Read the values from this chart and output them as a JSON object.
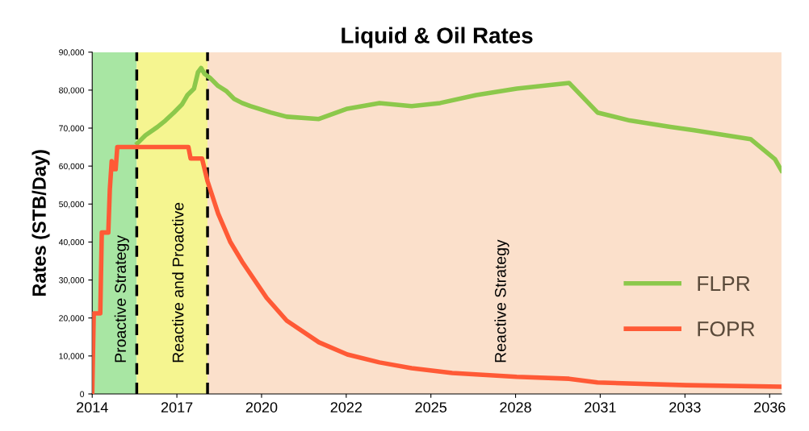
{
  "chart_data": {
    "type": "line",
    "title": "Liquid & Oil Rates",
    "ylabel": "Rates (STB/Day)",
    "xlim": [
      "2014-08-08",
      "2036-11-21"
    ],
    "ylim": [
      0,
      90000
    ],
    "xticks": [
      {
        "value": "2014-08-08",
        "label": "2014"
      },
      {
        "value": "2017-05-04",
        "label": "2017"
      },
      {
        "value": "2020-01-29",
        "label": "2020"
      },
      {
        "value": "2022-10-25",
        "label": "2022"
      },
      {
        "value": "2025-07-21",
        "label": "2025"
      },
      {
        "value": "2028-04-16",
        "label": "2028"
      },
      {
        "value": "2031-01-11",
        "label": "2031"
      },
      {
        "value": "2033-10-08",
        "label": "2033"
      },
      {
        "value": "2036-07-04",
        "label": "2036"
      }
    ],
    "yticks": [
      {
        "value": 0,
        "label": "0"
      },
      {
        "value": 10000,
        "label": "10,000"
      },
      {
        "value": 20000,
        "label": "20,000"
      },
      {
        "value": 30000,
        "label": "30,000"
      },
      {
        "value": 40000,
        "label": "40,000"
      },
      {
        "value": 50000,
        "label": "50,000"
      },
      {
        "value": 60000,
        "label": "60,000"
      },
      {
        "value": 70000,
        "label": "70,000"
      },
      {
        "value": 80000,
        "label": "80,000"
      },
      {
        "value": 90000,
        "label": "90,000"
      }
    ],
    "grid": false,
    "legend": "bottom right",
    "marker": "none",
    "line_style": "solid",
    "bands": [
      {
        "axis": "x",
        "from": "2014-08-08",
        "to": "2016-01-16",
        "label": "Proactive Strategy",
        "color": "#a8e6a3"
      },
      {
        "axis": "x",
        "from": "2016-01-16",
        "to": "2018-05-01",
        "label": "Reactive and Proactive",
        "color": "#f5f590"
      },
      {
        "axis": "x",
        "from": "2018-05-01",
        "to": "2036-11-21",
        "label": "Reactive Strategy",
        "color": "#fbe0cb"
      }
    ],
    "ref_lines": [
      {
        "axis": "x",
        "value": "2016-01-16",
        "color": "#000000",
        "line_style": "dashed"
      },
      {
        "axis": "x",
        "value": "2018-05-01",
        "color": "#000000",
        "line_style": "dashed"
      }
    ],
    "series": [
      {
        "name": "FLPR",
        "color": "#8cc84b",
        "x": [
          "2016-01-23",
          "2016-04-27",
          "2016-09-16",
          "2016-12-20",
          "2017-03-30",
          "2017-07-02",
          "2017-09-06",
          "2017-11-22",
          "2018-01-08",
          "2018-02-14",
          "2018-03-26",
          "2018-05-31",
          "2018-09-03",
          "2018-12-06",
          "2019-03-11",
          "2019-06-14",
          "2019-09-17",
          "2019-12-25",
          "2020-05-15",
          "2020-11-21",
          "2021-12-06",
          "2022-11-07",
          "2023-11-22",
          "2024-12-05",
          "2025-11-07",
          "2027-01-08",
          "2028-04-30",
          "2030-01-08",
          "2030-12-10",
          "2031-12-25",
          "2033-04-17",
          "2034-01-27",
          "2035-11-22",
          "2036-09-05",
          "2036-11-21"
        ],
        "values": [
          66000,
          68100,
          70300,
          72000,
          74100,
          76200,
          78700,
          80400,
          84700,
          85800,
          84300,
          83200,
          81100,
          79800,
          77700,
          76600,
          75800,
          75100,
          74100,
          73000,
          72400,
          75100,
          76600,
          75800,
          76600,
          78700,
          80400,
          81900,
          74100,
          72000,
          70300,
          69400,
          67100,
          61800,
          58800
        ]
      },
      {
        "name": "FOPR",
        "color": "#ff5a36",
        "x": [
          "2014-08-08",
          "2014-08-26",
          "2014-11-11",
          "2014-11-29",
          "2015-02-14",
          "2015-03-04",
          "2015-03-26",
          "2015-04-21",
          "2015-05-12",
          "2015-05-31",
          "2017-09-17",
          "2017-10-13",
          "2018-02-25",
          "2018-05-01",
          "2018-09-03",
          "2019-01-23",
          "2019-06-14",
          "2020-03-29",
          "2020-11-21",
          "2021-12-06",
          "2022-11-07",
          "2023-11-22",
          "2024-12-05",
          "2026-03-30",
          "2028-04-30",
          "2030-01-08",
          "2030-12-10",
          "2033-10-24",
          "2036-11-21"
        ],
        "values": [
          0,
          21200,
          21200,
          42500,
          42500,
          53900,
          61300,
          59200,
          59200,
          65000,
          65000,
          62000,
          62000,
          56000,
          47500,
          40100,
          34800,
          25300,
          19300,
          13600,
          10400,
          8300,
          6800,
          5500,
          4500,
          4000,
          3000,
          2300,
          1900
        ]
      }
    ]
  }
}
